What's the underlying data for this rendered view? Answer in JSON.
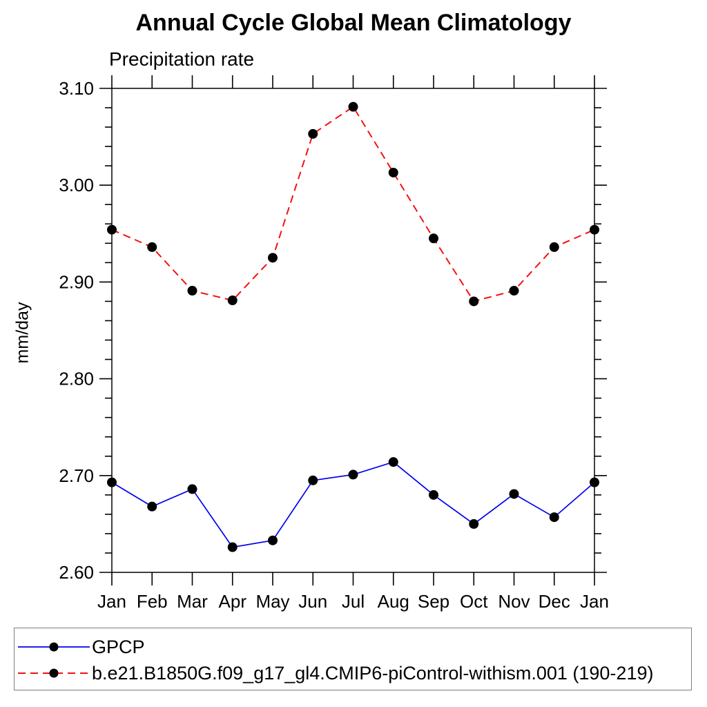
{
  "chart_data": {
    "type": "line",
    "title": "Annual Cycle Global Mean Climatology",
    "subtitle": "Precipitation rate",
    "ylabel": "mm/day",
    "xlabel": "",
    "categories": [
      "Jan",
      "Feb",
      "Mar",
      "Apr",
      "May",
      "Jun",
      "Jul",
      "Aug",
      "Sep",
      "Oct",
      "Nov",
      "Dec",
      "Jan"
    ],
    "series": [
      {
        "name": "GPCP",
        "color": "#0000ee",
        "line_style": "solid",
        "values": [
          2.693,
          2.668,
          2.686,
          2.626,
          2.633,
          2.695,
          2.701,
          2.714,
          2.68,
          2.65,
          2.681,
          2.657,
          2.693
        ]
      },
      {
        "name": "b.e21.B1850G.f09_g17_gl4.CMIP6-piControl-withism.001 (190-219)",
        "color": "#f50f0f",
        "line_style": "dashed",
        "values": [
          2.954,
          2.936,
          2.891,
          2.881,
          2.925,
          3.053,
          3.081,
          3.013,
          2.945,
          2.88,
          2.891,
          2.936,
          2.954
        ]
      }
    ],
    "ylim": [
      2.6,
      3.1
    ],
    "ytick_labels": [
      "2.60",
      "2.70",
      "2.80",
      "2.90",
      "3.00",
      "3.10"
    ],
    "yminor_step": 0.02,
    "marker": {
      "shape": "circle",
      "color": "#000000",
      "radius": 7
    },
    "grid": false,
    "legend_position": "bottom"
  }
}
